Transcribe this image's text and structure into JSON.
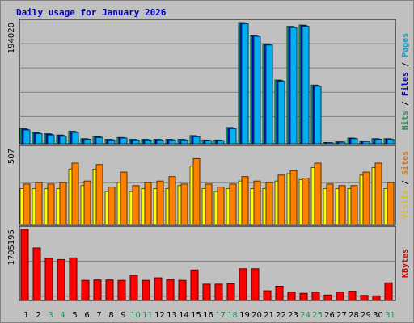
{
  "chart_data": {
    "type": "bar",
    "title": "Daily usage for January 2026",
    "categories": [
      "1",
      "2",
      "3",
      "4",
      "5",
      "6",
      "7",
      "8",
      "9",
      "10",
      "11",
      "12",
      "13",
      "14",
      "15",
      "16",
      "17",
      "18",
      "19",
      "20",
      "21",
      "22",
      "23",
      "24",
      "25",
      "26",
      "27",
      "28",
      "29",
      "30",
      "31"
    ],
    "weekend_days": [
      3,
      4,
      10,
      11,
      17,
      18,
      24,
      25,
      31
    ],
    "panels": [
      {
        "name": "top",
        "max_label": "194020",
        "ymax": 194020,
        "side_labels": [
          {
            "text": "Hits",
            "color": "#2e8b57"
          },
          {
            "text": " / ",
            "color": "#000000"
          },
          {
            "text": "Files",
            "color": "#0000cc"
          },
          {
            "text": " / ",
            "color": "#000000"
          },
          {
            "text": "Pages",
            "color": "#00a0e0"
          }
        ],
        "series": [
          {
            "name": "Hits",
            "color": "#00cc80",
            "values": [
              24000,
              18000,
              16000,
              14000,
              20000,
              8000,
              12000,
              7000,
              10000,
              7000,
              7000,
              7000,
              7000,
              7000,
              13000,
              6000,
              6000,
              26000,
              194000,
              174000,
              160000,
              102000,
              188000,
              190000,
              94000,
              2000,
              3000,
              9000,
              4000,
              8000,
              8000
            ]
          },
          {
            "name": "Files",
            "color": "#0000ff",
            "values": [
              23000,
              17000,
              15000,
              13000,
              19000,
              7500,
              11000,
              6500,
              9500,
              6500,
              6500,
              6500,
              6500,
              6500,
              12000,
              5500,
              5500,
              25000,
              193000,
              173000,
              159000,
              101000,
              187000,
              189000,
              93000,
              1800,
              2800,
              8500,
              3800,
              7500,
              7500
            ]
          },
          {
            "name": "Pages",
            "color": "#00b0f0",
            "values": [
              22000,
              16000,
              14000,
              12000,
              18000,
              7000,
              10000,
              6000,
              9000,
              6000,
              6000,
              6000,
              6000,
              6000,
              11000,
              5000,
              5000,
              24000,
              192000,
              172000,
              158000,
              100000,
              186000,
              188000,
              92000,
              1500,
              2500,
              8000,
              3500,
              7000,
              7000
            ]
          }
        ]
      },
      {
        "name": "middle",
        "max_label": "507",
        "ymax": 507,
        "side_labels": [
          {
            "text": "Visits",
            "color": "#e0c000"
          },
          {
            "text": " / ",
            "color": "#000000"
          },
          {
            "text": "Sites",
            "color": "#e07000"
          }
        ],
        "series": [
          {
            "name": "Visits",
            "color": "#ffff00",
            "values": [
              240,
              240,
              240,
              240,
              370,
              260,
              370,
              220,
              280,
              220,
              240,
              240,
              240,
              260,
              390,
              240,
              220,
              240,
              290,
              240,
              240,
              290,
              340,
              300,
              380,
              240,
              240,
              240,
              330,
              380,
              240
            ]
          },
          {
            "name": "Sites",
            "color": "#ff8000",
            "values": [
              270,
              280,
              270,
              280,
              410,
              290,
              400,
              250,
              350,
              260,
              280,
              290,
              320,
              270,
              440,
              270,
              250,
              270,
              320,
              290,
              280,
              330,
              360,
              310,
              410,
              270,
              260,
              260,
              350,
              410,
              280
            ]
          }
        ]
      },
      {
        "name": "bottom",
        "max_label": "1705195",
        "ymax": 1705195,
        "side_labels": [
          {
            "text": "KBytes",
            "color": "#cc0000"
          }
        ],
        "series": [
          {
            "name": "KBytes",
            "color": "#ff0000",
            "values": [
              1705195,
              1260000,
              1010000,
              980000,
              1020000,
              480000,
              490000,
              490000,
              480000,
              600000,
              480000,
              540000,
              500000,
              480000,
              730000,
              390000,
              390000,
              400000,
              760000,
              760000,
              230000,
              340000,
              200000,
              170000,
              200000,
              130000,
              200000,
              220000,
              120000,
              110000,
              420000
            ]
          }
        ]
      }
    ]
  }
}
